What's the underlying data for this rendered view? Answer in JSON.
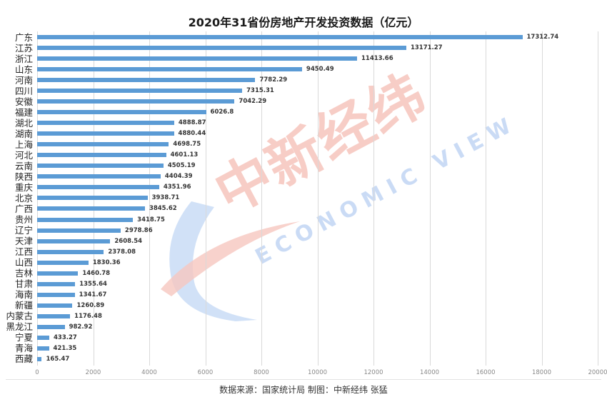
{
  "title": "2020年31省份房地产开发投资数据（亿元）",
  "source": "数据来源：国家统计局  制图：中新经纬 张猛",
  "watermark": {
    "cn": "中新经纬",
    "en": "ECONOMIC VIEW"
  },
  "colors": {
    "bar": "#5b9bd5",
    "grid": "#d9d9d9",
    "watermark_blue": "#c5d8f5",
    "watermark_red": "#f8c4bc"
  },
  "chart_data": {
    "type": "bar",
    "orientation": "horizontal",
    "title": "2020年31省份房地产开发投资数据（亿元）",
    "xlabel": "",
    "ylabel": "",
    "xlim": [
      0,
      20000
    ],
    "xticks": [
      0,
      2000,
      4000,
      6000,
      8000,
      10000,
      12000,
      14000,
      16000,
      18000,
      20000
    ],
    "grid": true,
    "legend": null,
    "data_labels": true,
    "categories": [
      "广东",
      "江苏",
      "浙江",
      "山东",
      "河南",
      "四川",
      "安徽",
      "福建",
      "湖北",
      "湖南",
      "上海",
      "河北",
      "云南",
      "陕西",
      "重庆",
      "北京",
      "广西",
      "贵州",
      "辽宁",
      "天津",
      "江西",
      "山西",
      "吉林",
      "甘肃",
      "海南",
      "新疆",
      "内蒙古",
      "黑龙江",
      "宁夏",
      "青海",
      "西藏"
    ],
    "values": [
      17312.74,
      13171.27,
      11413.66,
      9450.49,
      7782.29,
      7315.31,
      7042.29,
      6026.8,
      4888.87,
      4880.44,
      4698.75,
      4601.13,
      4505.19,
      4404.39,
      4351.96,
      3938.71,
      3845.62,
      3418.75,
      2978.86,
      2608.54,
      2378.08,
      1830.36,
      1460.78,
      1355.64,
      1341.67,
      1260.89,
      1176.48,
      982.92,
      433.27,
      421.35,
      165.47
    ],
    "value_labels": [
      "17312.74",
      "13171.27",
      "11413.66",
      "9450.49",
      "7782.29",
      "7315.31",
      "7042.29",
      "6026.8",
      "4888.87",
      "4880.44",
      "4698.75",
      "4601.13",
      "4505.19",
      "4404.39",
      "4351.96",
      "3938.71",
      "3845.62",
      "3418.75",
      "2978.86",
      "2608.54",
      "2378.08",
      "1830.36",
      "1460.78",
      "1355.64",
      "1341.67",
      "1260.89",
      "1176.48",
      "982.92",
      "433.27",
      "421.35",
      "165.47"
    ],
    "source": "数据来源：国家统计局  制图：中新经纬 张猛"
  }
}
